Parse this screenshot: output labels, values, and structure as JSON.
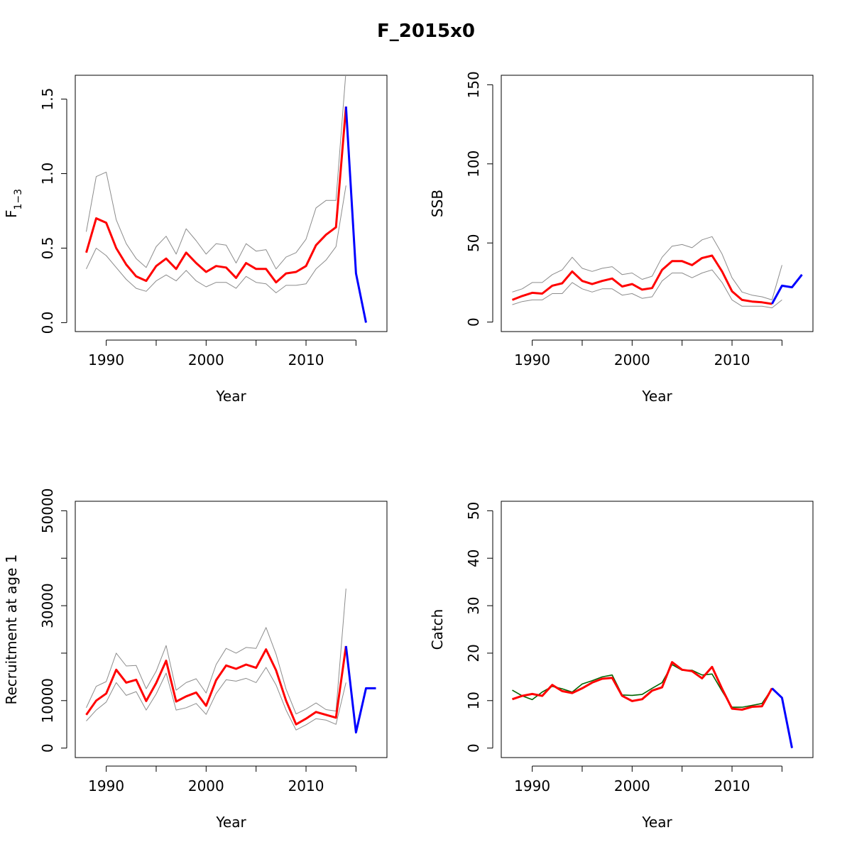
{
  "figure": {
    "title": "F_2015x0"
  },
  "chart_data": [
    {
      "id": "f",
      "type": "line",
      "xlabel": "Year",
      "ylabel": "F",
      "ylabel_subscript": "1−3",
      "xlim": [
        1986.9,
        2018.1
      ],
      "ylim": [
        -0.06,
        1.66
      ],
      "xticks": [
        1990,
        1995,
        2000,
        2005,
        2010,
        2015
      ],
      "xtick_labels": [
        "1990",
        "",
        "2000",
        "",
        "2010",
        ""
      ],
      "yticks": [
        0.0,
        0.5,
        1.0,
        1.5
      ],
      "ytick_labels": [
        "0.0",
        "0.5",
        "1.0",
        "1.5"
      ],
      "series": [
        {
          "role": "ci-upper",
          "color": "#8c8c8c",
          "width": 1,
          "x": [
            1988,
            1989,
            1990,
            1991,
            1992,
            1993,
            1994,
            1995,
            1996,
            1997,
            1998,
            1999,
            2000,
            2001,
            2002,
            2003,
            2004,
            2005,
            2006,
            2007,
            2008,
            2009,
            2010,
            2011,
            2012,
            2013,
            2014
          ],
          "y": [
            0.61,
            0.98,
            1.01,
            0.69,
            0.53,
            0.43,
            0.37,
            0.51,
            0.58,
            0.46,
            0.63,
            0.55,
            0.46,
            0.53,
            0.52,
            0.4,
            0.53,
            0.48,
            0.49,
            0.36,
            0.44,
            0.47,
            0.56,
            0.77,
            0.82,
            0.82,
            1.69
          ]
        },
        {
          "role": "ci-lower",
          "color": "#8c8c8c",
          "width": 1,
          "x": [
            1988,
            1989,
            1990,
            1991,
            1992,
            1993,
            1994,
            1995,
            1996,
            1997,
            1998,
            1999,
            2000,
            2001,
            2002,
            2003,
            2004,
            2005,
            2006,
            2007,
            2008,
            2009,
            2010,
            2011,
            2012,
            2013,
            2014
          ],
          "y": [
            0.36,
            0.5,
            0.45,
            0.37,
            0.29,
            0.23,
            0.21,
            0.28,
            0.32,
            0.28,
            0.35,
            0.28,
            0.24,
            0.27,
            0.27,
            0.23,
            0.31,
            0.27,
            0.26,
            0.2,
            0.25,
            0.25,
            0.26,
            0.36,
            0.42,
            0.51,
            0.92
          ]
        },
        {
          "role": "estimate",
          "color": "#ff0000",
          "width": 3,
          "x": [
            1988,
            1989,
            1990,
            1991,
            1992,
            1993,
            1994,
            1995,
            1996,
            1997,
            1998,
            1999,
            2000,
            2001,
            2002,
            2003,
            2004,
            2005,
            2006,
            2007,
            2008,
            2009,
            2010,
            2011,
            2012,
            2013,
            2014
          ],
          "y": [
            0.47,
            0.7,
            0.67,
            0.5,
            0.39,
            0.31,
            0.28,
            0.38,
            0.43,
            0.36,
            0.47,
            0.4,
            0.34,
            0.38,
            0.37,
            0.3,
            0.4,
            0.36,
            0.36,
            0.27,
            0.33,
            0.34,
            0.38,
            0.52,
            0.59,
            0.64,
            1.45
          ]
        },
        {
          "role": "projection",
          "color": "#0000ff",
          "width": 3,
          "x": [
            2014,
            2015,
            2016
          ],
          "y": [
            1.45,
            0.33,
            0.0
          ]
        }
      ]
    },
    {
      "id": "ssb",
      "type": "line",
      "xlabel": "Year",
      "ylabel": "SSB",
      "xlim": [
        1986.9,
        2018.1
      ],
      "ylim": [
        -6,
        156
      ],
      "xticks": [
        1990,
        1995,
        2000,
        2005,
        2010,
        2015
      ],
      "xtick_labels": [
        "1990",
        "",
        "2000",
        "",
        "2010",
        ""
      ],
      "yticks": [
        0,
        50,
        100,
        150
      ],
      "ytick_labels": [
        "0",
        "50",
        "100",
        "150"
      ],
      "series": [
        {
          "role": "ci-upper",
          "color": "#8c8c8c",
          "width": 1,
          "x": [
            1988,
            1989,
            1990,
            1991,
            1992,
            1993,
            1994,
            1995,
            1996,
            1997,
            1998,
            1999,
            2000,
            2001,
            2002,
            2003,
            2004,
            2005,
            2006,
            2007,
            2008,
            2009,
            2010,
            2011,
            2012,
            2013,
            2014,
            2015
          ],
          "y": [
            19,
            21,
            25,
            25,
            30,
            33,
            41,
            34,
            32,
            34,
            35,
            30,
            31,
            27,
            29,
            41,
            48,
            49,
            47,
            52,
            54,
            43,
            28,
            19,
            17,
            16,
            14,
            36
          ]
        },
        {
          "role": "ci-lower",
          "color": "#8c8c8c",
          "width": 1,
          "x": [
            1988,
            1989,
            1990,
            1991,
            1992,
            1993,
            1994,
            1995,
            1996,
            1997,
            1998,
            1999,
            2000,
            2001,
            2002,
            2003,
            2004,
            2005,
            2006,
            2007,
            2008,
            2009,
            2010,
            2011,
            2012,
            2013,
            2014,
            2015
          ],
          "y": [
            11,
            13,
            14,
            14,
            18,
            18,
            25,
            21,
            19,
            21,
            21,
            17,
            18,
            15,
            16,
            26,
            31,
            31,
            28,
            31,
            33,
            25,
            14,
            10,
            10,
            10,
            9,
            14
          ]
        },
        {
          "role": "estimate",
          "color": "#ff0000",
          "width": 3,
          "x": [
            1988,
            1989,
            1990,
            1991,
            1992,
            1993,
            1994,
            1995,
            1996,
            1997,
            1998,
            1999,
            2000,
            2001,
            2002,
            2003,
            2004,
            2005,
            2006,
            2007,
            2008,
            2009,
            2010,
            2011,
            2012,
            2013,
            2014
          ],
          "y": [
            14,
            16.5,
            18.5,
            18,
            23,
            24.5,
            32,
            26,
            24,
            26,
            27.5,
            22.5,
            24,
            20.5,
            21.5,
            33,
            38.5,
            38.5,
            36,
            40.5,
            42,
            32,
            19.5,
            14,
            13,
            12.5,
            11.5
          ]
        },
        {
          "role": "projection",
          "color": "#0000ff",
          "width": 3,
          "x": [
            2014,
            2015,
            2016,
            2017
          ],
          "y": [
            11.5,
            23,
            22,
            30
          ]
        }
      ]
    },
    {
      "id": "recruitment",
      "type": "line",
      "xlabel": "Year",
      "ylabel": "Recruitment at age 1",
      "xlim": [
        1986.9,
        2018.1
      ],
      "ylim": [
        -2000,
        52000
      ],
      "xticks": [
        1990,
        1995,
        2000,
        2005,
        2010,
        2015
      ],
      "xtick_labels": [
        "1990",
        "",
        "2000",
        "",
        "2010",
        ""
      ],
      "yticks": [
        0,
        10000,
        20000,
        30000,
        40000,
        50000
      ],
      "ytick_labels": [
        "0",
        "10000",
        "",
        "30000",
        "",
        "50000"
      ],
      "series": [
        {
          "role": "ci-upper",
          "color": "#8c8c8c",
          "width": 1,
          "x": [
            1988,
            1989,
            1990,
            1991,
            1992,
            1993,
            1994,
            1995,
            1996,
            1997,
            1998,
            1999,
            2000,
            2001,
            2002,
            2003,
            2004,
            2005,
            2006,
            2007,
            2008,
            2009,
            2010,
            2011,
            2012,
            2013,
            2014
          ],
          "y": [
            8500,
            13000,
            14000,
            20000,
            17300,
            17400,
            12500,
            16200,
            21600,
            12200,
            13800,
            14600,
            11600,
            17600,
            21000,
            20000,
            21200,
            21000,
            25400,
            19800,
            12400,
            7200,
            8200,
            9500,
            8100,
            7800,
            33600
          ]
        },
        {
          "role": "ci-lower",
          "color": "#8c8c8c",
          "width": 1,
          "x": [
            1988,
            1989,
            1990,
            1991,
            1992,
            1993,
            1994,
            1995,
            1996,
            1997,
            1998,
            1999,
            2000,
            2001,
            2002,
            2003,
            2004,
            2005,
            2006,
            2007,
            2008,
            2009,
            2010,
            2011,
            2012,
            2013,
            2014
          ],
          "y": [
            5700,
            8000,
            9700,
            13800,
            11100,
            11900,
            8000,
            11400,
            15800,
            8000,
            8500,
            9400,
            7100,
            11500,
            14400,
            14100,
            14700,
            13800,
            17000,
            13300,
            8000,
            3800,
            4900,
            6200,
            5900,
            5000,
            13800
          ]
        },
        {
          "role": "estimate",
          "color": "#ff0000",
          "width": 3,
          "x": [
            1988,
            1989,
            1990,
            1991,
            1992,
            1993,
            1994,
            1995,
            1996,
            1997,
            1998,
            1999,
            2000,
            2001,
            2002,
            2003,
            2004,
            2005,
            2006,
            2007,
            2008,
            2009,
            2010,
            2011,
            2012,
            2013,
            2014
          ],
          "y": [
            7000,
            10000,
            11500,
            16500,
            13800,
            14400,
            9900,
            13700,
            18400,
            9800,
            10900,
            11700,
            8900,
            14300,
            17400,
            16700,
            17600,
            16900,
            20800,
            16400,
            10000,
            5000,
            6200,
            7600,
            7000,
            6400,
            21500
          ]
        },
        {
          "role": "projection",
          "color": "#0000ff",
          "width": 3,
          "x": [
            2014,
            2015,
            2016,
            2017
          ],
          "y": [
            21500,
            3300,
            12600,
            12600
          ]
        }
      ]
    },
    {
      "id": "catch",
      "type": "line",
      "xlabel": "Year",
      "ylabel": "Catch",
      "xlim": [
        1986.9,
        2018.1
      ],
      "ylim": [
        -2,
        52
      ],
      "xticks": [
        1990,
        1995,
        2000,
        2005,
        2010,
        2015
      ],
      "xtick_labels": [
        "1990",
        "",
        "2000",
        "",
        "2010",
        ""
      ],
      "yticks": [
        0,
        10,
        20,
        30,
        40,
        50
      ],
      "ytick_labels": [
        "0",
        "10",
        "20",
        "30",
        "40",
        "50"
      ],
      "series": [
        {
          "role": "observed",
          "color": "#006400",
          "width": 1.6,
          "x": [
            1988,
            1989,
            1990,
            1991,
            1992,
            1993,
            1994,
            1995,
            1996,
            1997,
            1998,
            1999,
            2000,
            2001,
            2002,
            2003,
            2004,
            2005,
            2006,
            2007,
            2008,
            2009,
            2010,
            2011,
            2012,
            2013,
            2014
          ],
          "y": [
            12.2,
            11.0,
            10.2,
            11.8,
            13.0,
            12.5,
            11.8,
            13.5,
            14.2,
            15.0,
            15.4,
            11.2,
            11.1,
            11.3,
            12.6,
            13.8,
            17.6,
            16.4,
            16.4,
            15.4,
            15.6,
            12.0,
            8.6,
            8.6,
            9.0,
            9.4,
            12.5
          ]
        },
        {
          "role": "estimate",
          "color": "#ff0000",
          "width": 3,
          "x": [
            1988,
            1989,
            1990,
            1991,
            1992,
            1993,
            1994,
            1995,
            1996,
            1997,
            1998,
            1999,
            2000,
            2001,
            2002,
            2003,
            2004,
            2005,
            2006,
            2007,
            2008,
            2009,
            2010,
            2011,
            2012,
            2013,
            2014
          ],
          "y": [
            10.3,
            11.0,
            11.4,
            11.0,
            13.3,
            12.0,
            11.6,
            12.6,
            13.8,
            14.6,
            14.8,
            11.0,
            9.9,
            10.3,
            12.1,
            12.8,
            18.1,
            16.5,
            16.2,
            14.7,
            17.1,
            12.5,
            8.3,
            8.1,
            8.7,
            8.8,
            12.6
          ]
        },
        {
          "role": "projection",
          "color": "#0000ff",
          "width": 3,
          "x": [
            2014,
            2015,
            2016
          ],
          "y": [
            12.6,
            10.6,
            0.0
          ]
        }
      ]
    }
  ]
}
